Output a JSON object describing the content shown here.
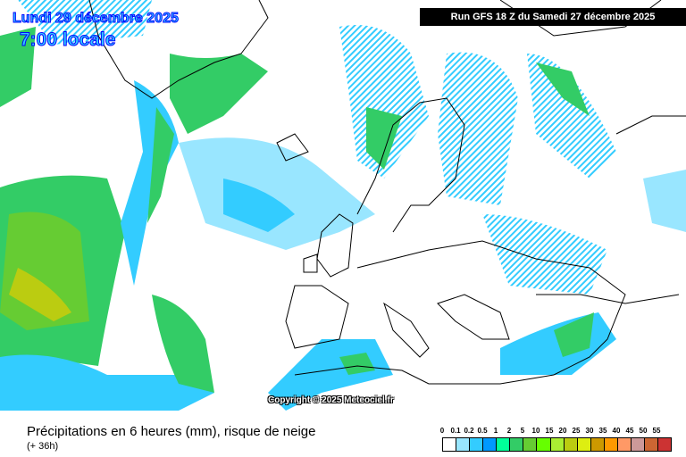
{
  "header": {
    "run": "Run GFS 18 Z du Samedi 27 décembre 2025",
    "date": "Lundi 29 décembre 2025",
    "time": "7:00 locale"
  },
  "copyright": "Copyright © 2025 Meteociel.fr",
  "footer": {
    "title": "Précipitations en 6 heures (mm), risque de neige",
    "subtitle": "(+ 36h)"
  },
  "legend": {
    "labels": [
      "0",
      "0.1",
      "0.2",
      "0.5",
      "1",
      "2",
      "5",
      "10",
      "15",
      "20",
      "25",
      "30",
      "35",
      "40",
      "45",
      "50",
      "55"
    ],
    "colors": [
      "#ffffff",
      "#99e6ff",
      "#33ccff",
      "#0099ff",
      "#00ff99",
      "#33cc66",
      "#66cc33",
      "#66ff00",
      "#aaee33",
      "#bbcc11",
      "#ddee11",
      "#cc9900",
      "#ff9900",
      "#ff9966",
      "#cc9999",
      "#cc6633",
      "#cc3333"
    ]
  }
}
